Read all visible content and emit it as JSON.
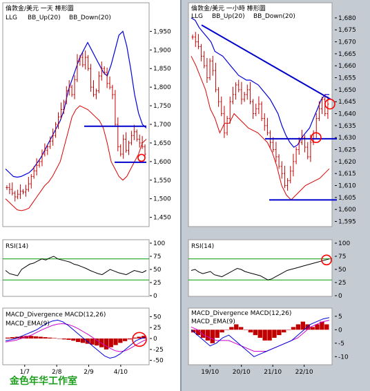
{
  "colors": {
    "bg_left": "#ffffff",
    "bg_right_panel": "#c5cbd3",
    "price": "#c00000",
    "bb_up": "#0000dd",
    "bb_down": "#dd0000",
    "trend": "#0000cc",
    "rsi": "#000000",
    "rsi_band": "#009900",
    "macd_bar": "#c00000",
    "macd_line": "#0000dd",
    "macd_ema": "#cc00cc",
    "circle": "#ff0000"
  },
  "brand_text": "金色年华工作室",
  "chart_data": [
    {
      "type": "candlestick",
      "title": "倫敦金/美元 一天 棒形圖",
      "legend": [
        "LLG",
        "BB_Up(20)",
        "BB_Down(20)"
      ],
      "ylim": [
        1440,
        1960
      ],
      "y_ticks": [
        "1,950",
        "1,900",
        "1,850",
        "1,800",
        "1,750",
        "1,700",
        "1,650",
        "1,600",
        "1,550",
        "1,500",
        "1,450"
      ],
      "x_ticks": [
        "1/7",
        "2/8",
        "2/9",
        "4/10"
      ],
      "close_approx": [
        1530,
        1525,
        1515,
        1505,
        1512,
        1520,
        1518,
        1525,
        1540,
        1560,
        1575,
        1590,
        1600,
        1620,
        1630,
        1640,
        1655,
        1670,
        1700,
        1720,
        1740,
        1760,
        1790,
        1800,
        1780,
        1820,
        1870,
        1880,
        1860,
        1880,
        1850,
        1800,
        1780,
        1790,
        1830,
        1850,
        1840,
        1810,
        1800,
        1780,
        1700,
        1640,
        1620,
        1660,
        1630,
        1650,
        1670,
        1680,
        1660,
        1650,
        1640,
        1620
      ],
      "bb_up_approx": [
        1580,
        1570,
        1560,
        1558,
        1560,
        1565,
        1570,
        1580,
        1595,
        1610,
        1630,
        1650,
        1670,
        1690,
        1710,
        1740,
        1790,
        1820,
        1850,
        1880,
        1900,
        1920,
        1900,
        1880,
        1860,
        1840,
        1830,
        1860,
        1900,
        1940,
        1950,
        1910,
        1850,
        1780,
        1730,
        1700,
        1690
      ],
      "bb_down_approx": [
        1500,
        1490,
        1480,
        1470,
        1468,
        1470,
        1475,
        1490,
        1505,
        1520,
        1535,
        1545,
        1560,
        1580,
        1600,
        1640,
        1680,
        1720,
        1740,
        1750,
        1745,
        1740,
        1730,
        1720,
        1710,
        1690,
        1650,
        1600,
        1580,
        1560,
        1550,
        1560,
        1580,
        1600,
        1620,
        1650,
        1660
      ],
      "horizontal_lines": [
        1695,
        1598
      ],
      "highlight": {
        "label": "circle",
        "y": 1610
      }
    },
    {
      "type": "line",
      "title": "RSI(14)",
      "ylim": [
        0,
        100
      ],
      "y_ticks": [
        "100",
        "75",
        "50",
        "25",
        "0"
      ],
      "bands": [
        70,
        30
      ],
      "values_approx": [
        48,
        42,
        40,
        38,
        50,
        55,
        60,
        62,
        66,
        70,
        68,
        72,
        75,
        70,
        68,
        66,
        64,
        60,
        58,
        55,
        52,
        48,
        45,
        42,
        40,
        45,
        50,
        47,
        44,
        42,
        40,
        44,
        48,
        46,
        44,
        48
      ]
    },
    {
      "type": "histogram",
      "title": "MACD_Divergence MACD(12,26)",
      "legend": [
        "MACD_EMA(9)"
      ],
      "ylim": [
        -60,
        60
      ],
      "y_ticks": [
        "50",
        "25",
        "0",
        "-25",
        "-50"
      ],
      "bars_approx": [
        2,
        3,
        4,
        5,
        6,
        6,
        5,
        4,
        3,
        2,
        1,
        0,
        -2,
        -3,
        -5,
        -8,
        -10,
        -12,
        -14,
        -16,
        -20,
        -25,
        -20,
        -15,
        -10,
        -6,
        -2,
        2,
        4,
        6
      ],
      "macd_approx": [
        -5,
        -3,
        0,
        5,
        10,
        15,
        20,
        28,
        35,
        40,
        42,
        38,
        30,
        20,
        10,
        0,
        -10,
        -20,
        -30,
        -40,
        -45,
        -42,
        -35,
        -25,
        -15,
        -5,
        0,
        3
      ],
      "ema_approx": [
        -8,
        -6,
        -4,
        0,
        4,
        8,
        14,
        20,
        25,
        30,
        33,
        34,
        32,
        28,
        22,
        15,
        8,
        0,
        -8,
        -15,
        -22,
        -28,
        -30,
        -28,
        -22,
        -15,
        -8,
        -2
      ]
    },
    {
      "type": "candlestick",
      "title": "倫敦金/美元 一小時 棒形圖",
      "legend": [
        "LLG",
        "BB_Up(20)",
        "BB_Down(20)"
      ],
      "ylim": [
        1594,
        1684
      ],
      "y_ticks": [
        "1,680",
        "1,675",
        "1,670",
        "1,665",
        "1,660",
        "1,655",
        "1,650",
        "1,645",
        "1,640",
        "1,635",
        "1,630",
        "1,625",
        "1,620",
        "1,615",
        "1,610",
        "1,605",
        "1,600",
        "1,595"
      ],
      "x_ticks": [
        "19/10",
        "20/10",
        "21/10",
        "22/10"
      ],
      "close_approx": [
        1672,
        1670,
        1668,
        1664,
        1660,
        1655,
        1662,
        1658,
        1650,
        1645,
        1640,
        1632,
        1638,
        1645,
        1648,
        1652,
        1650,
        1646,
        1648,
        1650,
        1645,
        1640,
        1642,
        1644,
        1638,
        1635,
        1632,
        1628,
        1625,
        1622,
        1618,
        1615,
        1610,
        1612,
        1616,
        1620,
        1625,
        1628,
        1630,
        1626,
        1622,
        1628,
        1632,
        1638,
        1642,
        1646,
        1640,
        1644
      ],
      "bb_up_approx": [
        1680,
        1679,
        1676,
        1674,
        1672,
        1670,
        1666,
        1665,
        1664,
        1662,
        1660,
        1658,
        1656,
        1655,
        1654,
        1654,
        1653,
        1652,
        1650,
        1648,
        1646,
        1643,
        1640,
        1635,
        1631,
        1628,
        1626,
        1627,
        1630,
        1632,
        1634,
        1638,
        1642,
        1646,
        1648,
        1648
      ],
      "bb_down_approx": [
        1664,
        1660,
        1655,
        1650,
        1642,
        1638,
        1632,
        1636,
        1636,
        1640,
        1638,
        1636,
        1634,
        1633,
        1632,
        1630,
        1628,
        1624,
        1618,
        1610,
        1606,
        1604,
        1606,
        1608,
        1610,
        1611,
        1612,
        1613,
        1615,
        1617
      ],
      "trend_line": [
        [
          0,
          1677
        ],
        [
          1,
          1646
        ]
      ],
      "horizontal_lines": [
        1629.5,
        1604
      ],
      "highlights": [
        {
          "label": "circle",
          "y": 1644
        },
        {
          "label": "circle",
          "y": 1630
        }
      ]
    },
    {
      "type": "line",
      "title": "RSI(14)",
      "ylim": [
        0,
        100
      ],
      "y_ticks": [
        "100",
        "75",
        "50",
        "25",
        "0"
      ],
      "bands": [
        70,
        30
      ],
      "values_approx": [
        48,
        50,
        45,
        42,
        44,
        46,
        40,
        38,
        36,
        40,
        44,
        48,
        52,
        50,
        46,
        44,
        42,
        40,
        38,
        34,
        30,
        32,
        36,
        40,
        44,
        48,
        50,
        52,
        54,
        56,
        58,
        60,
        62,
        64,
        66,
        68,
        70
      ],
      "highlight": {
        "label": "circle",
        "y": 68
      }
    },
    {
      "type": "histogram",
      "title": "MACD_Divergence MACD(12,26)",
      "legend": [
        "MACD_EMA(9)"
      ],
      "ylim": [
        -13,
        7
      ],
      "y_ticks": [
        "5",
        "0",
        "-5",
        "-10"
      ],
      "bars_approx": [
        -1,
        -2,
        -3,
        -4,
        -5,
        -3,
        -1,
        0,
        1,
        2,
        1,
        0,
        -1,
        -2,
        -3,
        -4,
        -4,
        -3,
        -2,
        -1,
        0,
        1,
        2,
        3,
        2,
        1,
        2,
        3,
        2
      ],
      "macd_approx": [
        0,
        -2,
        -4,
        -6,
        -5,
        -3,
        -2,
        -4,
        -6,
        -8,
        -10,
        -9,
        -8,
        -7,
        -6,
        -5,
        -4,
        -2,
        0,
        2,
        3,
        4,
        4.5
      ],
      "ema_approx": [
        1,
        0,
        -2,
        -3,
        -4,
        -4,
        -4,
        -5,
        -6,
        -7,
        -8,
        -8,
        -8,
        -7,
        -6,
        -5,
        -4,
        -3,
        -1,
        1,
        2,
        3,
        3.5
      ]
    }
  ]
}
